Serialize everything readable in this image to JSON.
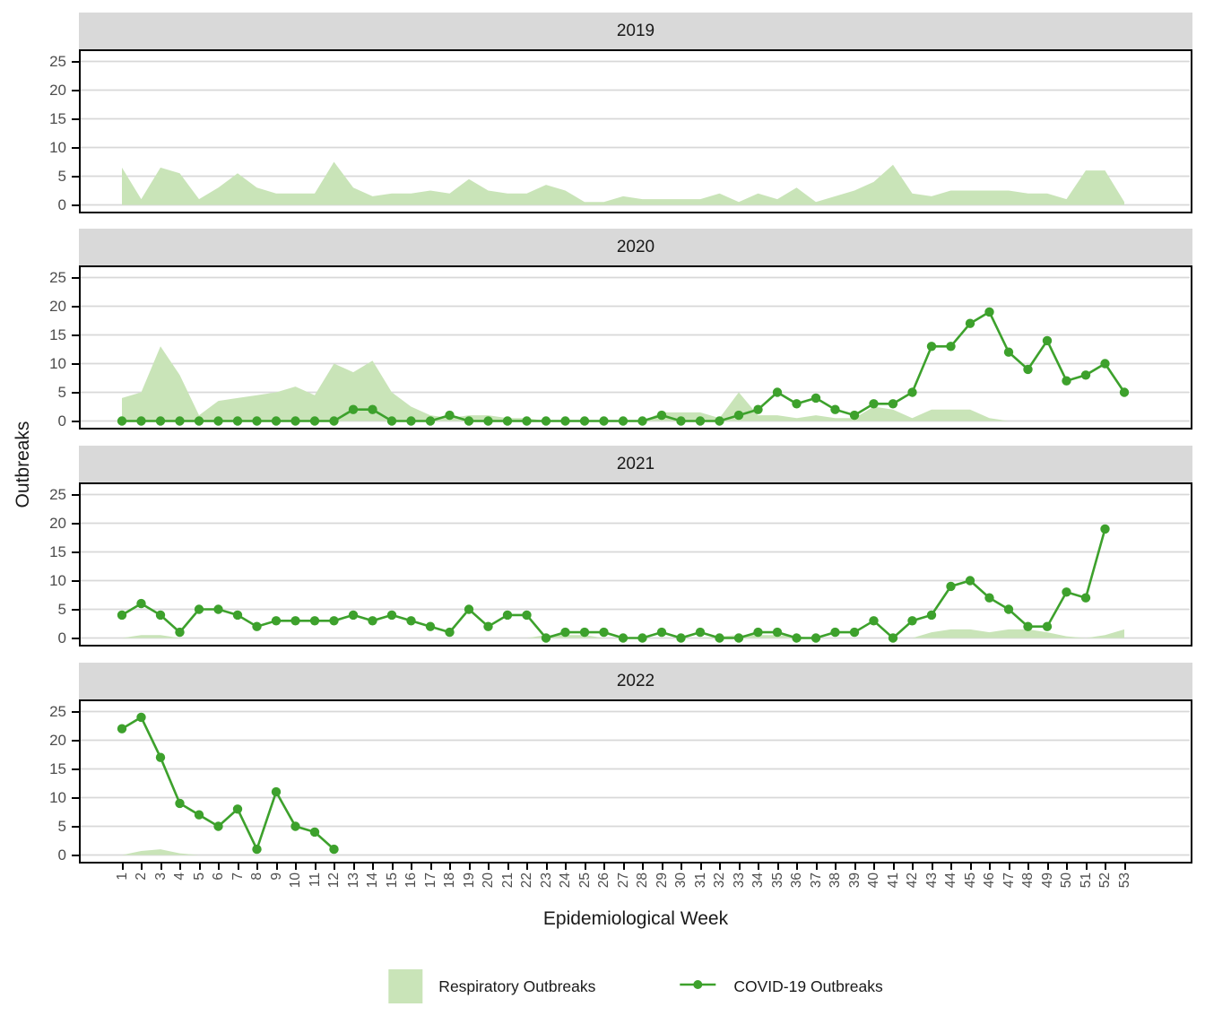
{
  "figure": {
    "y_axis_title": "Outbreaks",
    "x_axis_title": "Epidemiological Week",
    "facets": [
      "2019",
      "2020",
      "2021",
      "2022"
    ],
    "y_ticks": [
      "0",
      "5",
      "10",
      "15",
      "20",
      "25"
    ],
    "x_ticks": [
      1,
      2,
      3,
      4,
      5,
      6,
      7,
      8,
      9,
      10,
      11,
      12,
      13,
      14,
      15,
      16,
      17,
      18,
      19,
      20,
      21,
      22,
      23,
      24,
      25,
      26,
      27,
      28,
      29,
      30,
      31,
      32,
      33,
      34,
      35,
      36,
      37,
      38,
      39,
      40,
      41,
      42,
      43,
      44,
      45,
      46,
      47,
      48,
      49,
      50,
      51,
      52,
      53
    ],
    "legend": [
      {
        "label": "Respiratory Outbreaks",
        "type": "area-swatch",
        "color": "#c9e4b8"
      },
      {
        "label": "COVID-19 Outbreaks",
        "type": "line-dot-swatch",
        "color": "#3da12c"
      }
    ]
  },
  "colors": {
    "area_fill": "#c9e4b8",
    "line": "#3da12c",
    "strip_bg": "#d9d9d9",
    "gridline": "#d8d8d8",
    "panel_border": "#000000",
    "axis_text": "#4d4d4d",
    "title_text": "#1a1a1a"
  },
  "chart_data": [
    {
      "type": "area",
      "facet": "2019",
      "xlabel": "Epidemiological Week",
      "ylabel": "Outbreaks",
      "x_start": 1,
      "xlim": [
        1,
        53
      ],
      "ylim": [
        0,
        25
      ],
      "grid": "major-horizontal",
      "series": [
        {
          "name": "Respiratory Outbreaks",
          "type": "area",
          "values": [
            6.5,
            1,
            6.5,
            5.5,
            1,
            3,
            5.5,
            3,
            2,
            2,
            2,
            7.5,
            3,
            1.5,
            2,
            2,
            2.5,
            2,
            4.5,
            2.5,
            2,
            2,
            3.5,
            2.5,
            0.5,
            0.5,
            1.5,
            1,
            1,
            1,
            1,
            2,
            0.5,
            2,
            1,
            3,
            0.5,
            1.5,
            2.5,
            4,
            7,
            2,
            1.5,
            2.5,
            2.5,
            2.5,
            2.5,
            2,
            2,
            1,
            6,
            6,
            0.5
          ]
        },
        {
          "name": "COVID-19 Outbreaks",
          "type": "line",
          "values": []
        }
      ]
    },
    {
      "type": "area+line",
      "facet": "2020",
      "xlabel": "Epidemiological Week",
      "ylabel": "Outbreaks",
      "x_start": 1,
      "xlim": [
        1,
        53
      ],
      "ylim": [
        0,
        25
      ],
      "grid": "major-horizontal",
      "series": [
        {
          "name": "Respiratory Outbreaks",
          "type": "area",
          "values": [
            4,
            5,
            13,
            8,
            1,
            3.5,
            4,
            4.5,
            5,
            6,
            4.5,
            10,
            8.5,
            10.5,
            5,
            2.5,
            1,
            0.5,
            1,
            1,
            0.5,
            0.5,
            0,
            0,
            0,
            0,
            0,
            0,
            1.5,
            1.5,
            1.5,
            0.5,
            5,
            1,
            1,
            0.5,
            1,
            0.5,
            0.5,
            2.5,
            2,
            0.5,
            2,
            2,
            2,
            0.5,
            0,
            0,
            0,
            0,
            0,
            0,
            0
          ]
        },
        {
          "name": "COVID-19 Outbreaks",
          "type": "line",
          "values": [
            0,
            0,
            0,
            0,
            0,
            0,
            0,
            0,
            0,
            0,
            0,
            0,
            2,
            2,
            0,
            0,
            0,
            1,
            0,
            0,
            0,
            0,
            0,
            0,
            0,
            0,
            0,
            0,
            1,
            0,
            0,
            0,
            1,
            2,
            5,
            3,
            4,
            2,
            1,
            3,
            3,
            5,
            13,
            13,
            17,
            19,
            12,
            9,
            14,
            7,
            8,
            10,
            5
          ]
        }
      ]
    },
    {
      "type": "area+line",
      "facet": "2021",
      "xlabel": "Epidemiological Week",
      "ylabel": "Outbreaks",
      "x_start": 1,
      "xlim": [
        1,
        53
      ],
      "ylim": [
        0,
        25
      ],
      "grid": "major-horizontal",
      "series": [
        {
          "name": "Respiratory Outbreaks",
          "type": "area",
          "values": [
            0,
            0.5,
            0.5,
            0,
            0,
            0,
            0,
            0,
            0,
            0,
            0,
            0,
            0,
            0,
            0,
            0,
            0,
            0,
            0,
            0,
            0,
            0,
            0.5,
            0.5,
            0.5,
            0,
            0,
            0,
            0,
            0,
            0,
            0.3,
            0.5,
            0.5,
            0.5,
            0.3,
            0,
            0,
            0,
            0,
            0,
            0,
            1,
            1.5,
            1.5,
            1,
            1.5,
            1.5,
            1,
            0.3,
            0,
            0.5,
            1.5
          ]
        },
        {
          "name": "COVID-19 Outbreaks",
          "type": "line",
          "values": [
            4,
            6,
            4,
            1,
            5,
            5,
            4,
            2,
            3,
            3,
            3,
            3,
            4,
            3,
            4,
            3,
            2,
            1,
            5,
            2,
            4,
            4,
            0,
            1,
            1,
            1,
            0,
            0,
            1,
            0,
            1,
            0,
            0,
            1,
            1,
            0,
            0,
            1,
            1,
            3,
            0,
            3,
            4,
            9,
            10,
            7,
            5,
            2,
            2,
            8,
            7,
            19
          ]
        }
      ]
    },
    {
      "type": "area+line",
      "facet": "2022",
      "xlabel": "Epidemiological Week",
      "ylabel": "Outbreaks",
      "x_start": 1,
      "xlim": [
        1,
        53
      ],
      "ylim": [
        0,
        25
      ],
      "grid": "major-horizontal",
      "series": [
        {
          "name": "Respiratory Outbreaks",
          "type": "area",
          "values": [
            0,
            0.7,
            1,
            0.3,
            0,
            0,
            0,
            0,
            0,
            0,
            0,
            0
          ]
        },
        {
          "name": "COVID-19 Outbreaks",
          "type": "line",
          "values": [
            22,
            24,
            17,
            9,
            7,
            5,
            8,
            1,
            11,
            5,
            4,
            1
          ]
        }
      ]
    }
  ]
}
